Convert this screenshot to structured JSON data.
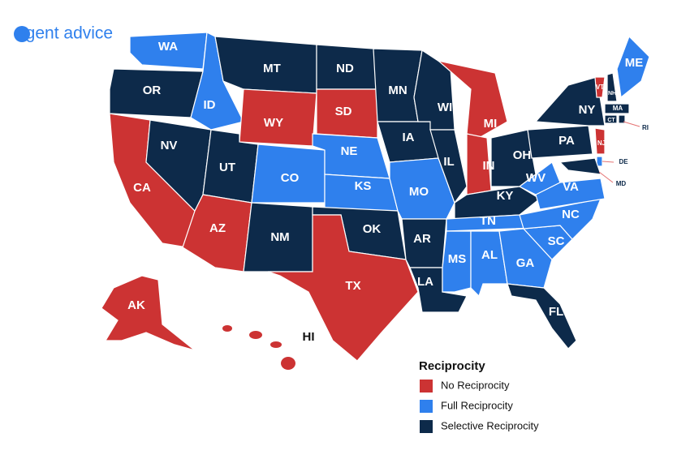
{
  "logo": "agent advice",
  "legend": {
    "title": "Reciprocity",
    "items": [
      {
        "label": "No Reciprocity",
        "color": "#cc3333"
      },
      {
        "label": "Full Reciprocity",
        "color": "#2f80ed"
      },
      {
        "label": "Selective Reciprocity",
        "color": "#0d2a4a"
      }
    ]
  },
  "states": [
    {
      "label": "WA",
      "category": 1
    },
    {
      "label": "OR",
      "category": 2
    },
    {
      "label": "CA",
      "category": 0
    },
    {
      "label": "NV",
      "category": 2
    },
    {
      "label": "ID",
      "category": 1
    },
    {
      "label": "MT",
      "category": 2
    },
    {
      "label": "WY",
      "category": 0
    },
    {
      "label": "UT",
      "category": 2
    },
    {
      "label": "CO",
      "category": 1
    },
    {
      "label": "AZ",
      "category": 0
    },
    {
      "label": "NM",
      "category": 2
    },
    {
      "label": "ND",
      "category": 2
    },
    {
      "label": "SD",
      "category": 0
    },
    {
      "label": "NE",
      "category": 1
    },
    {
      "label": "KS",
      "category": 1
    },
    {
      "label": "OK",
      "category": 2
    },
    {
      "label": "TX",
      "category": 0
    },
    {
      "label": "MN",
      "category": 2
    },
    {
      "label": "IA",
      "category": 2
    },
    {
      "label": "MO",
      "category": 1
    },
    {
      "label": "AR",
      "category": 2
    },
    {
      "label": "LA",
      "category": 2
    },
    {
      "label": "WI",
      "category": 2
    },
    {
      "label": "IL",
      "category": 2
    },
    {
      "label": "MI",
      "category": 0
    },
    {
      "label": "IN",
      "category": 0
    },
    {
      "label": "OH",
      "category": 2
    },
    {
      "label": "KY",
      "category": 2
    },
    {
      "label": "TN",
      "category": 1
    },
    {
      "label": "MS",
      "category": 1
    },
    {
      "label": "AL",
      "category": 1
    },
    {
      "label": "GA",
      "category": 1
    },
    {
      "label": "FL",
      "category": 2
    },
    {
      "label": "SC",
      "category": 1
    },
    {
      "label": "NC",
      "category": 1
    },
    {
      "label": "VA",
      "category": 1
    },
    {
      "label": "WV",
      "category": 1
    },
    {
      "label": "PA",
      "category": 2
    },
    {
      "label": "NY",
      "category": 2
    },
    {
      "label": "VT",
      "category": 0
    },
    {
      "label": "NH",
      "category": 2
    },
    {
      "label": "ME",
      "category": 1
    },
    {
      "label": "MA",
      "category": 2
    },
    {
      "label": "CT",
      "category": 2
    },
    {
      "label": "RI",
      "category": 2
    },
    {
      "label": "NJ",
      "category": 0
    },
    {
      "label": "DE",
      "category": 1
    },
    {
      "label": "MD",
      "category": 2
    },
    {
      "label": "AK",
      "category": 0
    },
    {
      "label": "HI",
      "category": 0
    }
  ]
}
